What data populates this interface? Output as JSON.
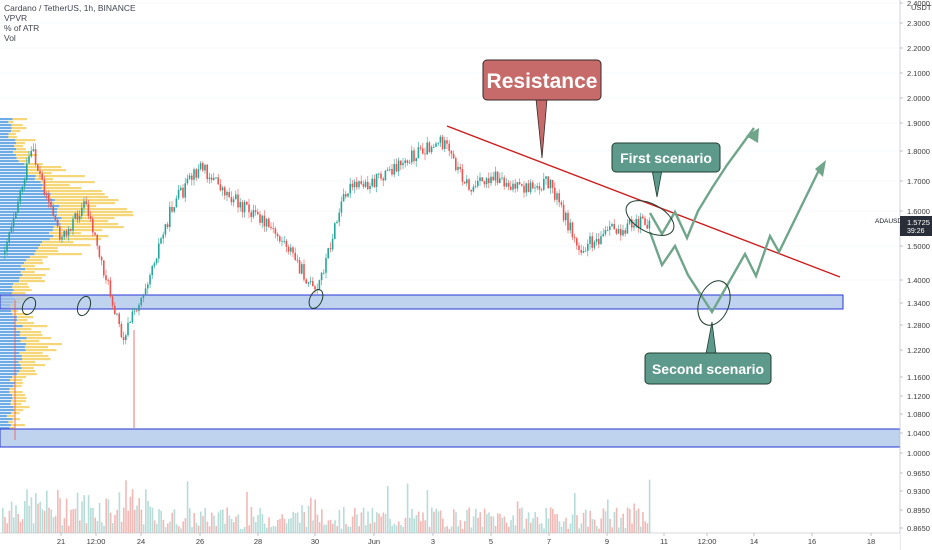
{
  "header": {
    "symbol_line": "Cardano / TetherUS, 1h, BINANCE",
    "indicators": [
      "VPVR",
      "% of ATR",
      "Vol"
    ]
  },
  "price_axis": {
    "unit": "USDT",
    "tick_labels": [
      "2.4000",
      "2.3000",
      "2.2000",
      "2.1000",
      "2.0000",
      "1.9000",
      "1.8000",
      "1.7000",
      "1.6000",
      "1.5000",
      "1.4000",
      "1.3400",
      "1.2800",
      "1.2200",
      "1.1600",
      "1.1200",
      "1.0800",
      "1.0400",
      "1.0000",
      "0.9650",
      "0.9300",
      "0.8950",
      "0.8650"
    ],
    "current_price": "1.5725",
    "countdown": "39:26",
    "ticker": "ADAUSDT"
  },
  "time_axis": {
    "tick_labels": [
      "21",
      "12:00",
      "24",
      "26",
      "28",
      "30",
      "Jun",
      "3",
      "5",
      "7",
      "9",
      "11",
      "12:00",
      "14",
      "16",
      "18"
    ]
  },
  "annotations": {
    "resistance": "Resistance",
    "first_scenario": "First scenario",
    "second_scenario": "Second scenario"
  },
  "colors": {
    "up": "#26a69a",
    "down": "#ef5350",
    "resistance_line": "#cc1f1f",
    "support_zone_fill": "#a9c4e8",
    "support_zone_border": "#2a35d6",
    "resistance_box": "#c76a6a",
    "scenario_box": "#5e9a8c",
    "scenario_path": "#6fa58a",
    "vp_blue": "#3f8fdb",
    "vp_yellow": "#f2c94c"
  },
  "chart_data": {
    "type": "candlestick",
    "instrument": "Cardano / TetherUS",
    "interval": "1h",
    "exchange": "BINANCE",
    "y_unit": "USDT",
    "close_path": [
      {
        "x": "May 19",
        "y": 1.5
      },
      {
        "x": "May 20",
        "y": 1.8
      },
      {
        "x": "May 21",
        "y": 1.52
      },
      {
        "x": "May 22",
        "y": 1.63
      },
      {
        "x": "May 22 12:00",
        "y": 1.45
      },
      {
        "x": "May 23",
        "y": 1.25
      },
      {
        "x": "May 24",
        "y": 1.36
      },
      {
        "x": "May 25",
        "y": 1.62
      },
      {
        "x": "May 26",
        "y": 1.75
      },
      {
        "x": "May 27",
        "y": 1.65
      },
      {
        "x": "May 28",
        "y": 1.58
      },
      {
        "x": "May 29",
        "y": 1.5
      },
      {
        "x": "May 30",
        "y": 1.36
      },
      {
        "x": "May 31",
        "y": 1.67
      },
      {
        "x": "Jun 1",
        "y": 1.7
      },
      {
        "x": "Jun 2",
        "y": 1.77
      },
      {
        "x": "Jun 3",
        "y": 1.84
      },
      {
        "x": "Jun 4",
        "y": 1.67
      },
      {
        "x": "Jun 5",
        "y": 1.72
      },
      {
        "x": "Jun 6",
        "y": 1.67
      },
      {
        "x": "Jun 7",
        "y": 1.7
      },
      {
        "x": "Jun 8",
        "y": 1.49
      },
      {
        "x": "Jun 9",
        "y": 1.54
      },
      {
        "x": "Jun 10",
        "y": 1.5725
      }
    ],
    "resistance_line": {
      "from": {
        "x": "Jun 3",
        "y": 1.89
      },
      "to": {
        "x": "Jun 17",
        "y": 1.41
      }
    },
    "support_zones": [
      {
        "low": 1.32,
        "high": 1.355
      },
      {
        "low": 1.012,
        "high": 1.045
      }
    ],
    "first_scenario_path": [
      {
        "x": "Jun 10",
        "y": 1.57
      },
      {
        "x": "Jun 10 12:00",
        "y": 1.52
      },
      {
        "x": "Jun 11",
        "y": 1.57
      },
      {
        "x": "Jun 11 06:00",
        "y": 1.52
      },
      {
        "x": "Jun 11 12:00",
        "y": 1.58
      },
      {
        "x": "Jun 12",
        "y": 1.71
      },
      {
        "x": "Jun 13",
        "y": 1.88
      }
    ],
    "second_scenario_path": [
      {
        "x": "Jun 10",
        "y": 1.52
      },
      {
        "x": "Jun 10 12:00",
        "y": 1.45
      },
      {
        "x": "Jun 11",
        "y": 1.49
      },
      {
        "x": "Jun 11 06:00",
        "y": 1.43
      },
      {
        "x": "Jun 12",
        "y": 1.325
      },
      {
        "x": "Jun 13",
        "y": 1.49
      },
      {
        "x": "Jun 13 12:00",
        "y": 1.43
      },
      {
        "x": "Jun 14",
        "y": 1.52
      },
      {
        "x": "Jun 14 12:00",
        "y": 1.46
      },
      {
        "x": "Jun 16",
        "y": 1.76
      }
    ]
  }
}
